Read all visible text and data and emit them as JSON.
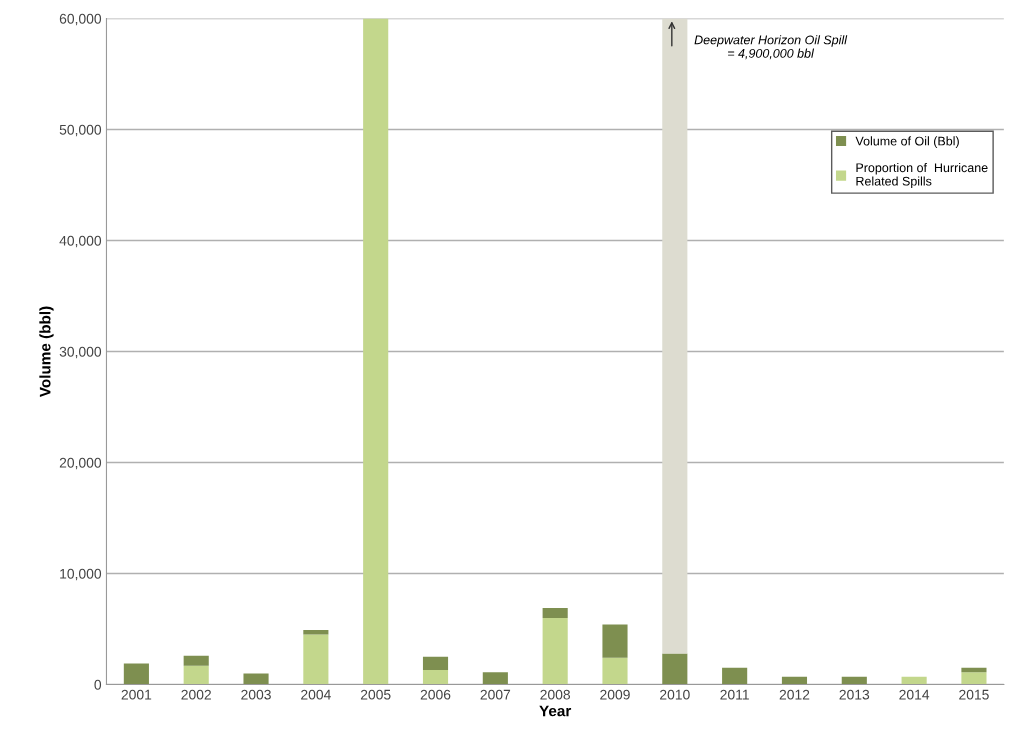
{
  "chart_data": {
    "type": "bar",
    "stacked": true,
    "xlabel": "Year",
    "ylabel": "Volume (bbl)",
    "categories": [
      "2001",
      "2002",
      "2003",
      "2004",
      "2005",
      "2006",
      "2007",
      "2008",
      "2009",
      "2010",
      "2011",
      "2012",
      "2013",
      "2014",
      "2015"
    ],
    "series": [
      {
        "name": "Proportion of  Hurricane\nRelated Spills",
        "color": "#c3d78c",
        "values": [
          0,
          1700,
          0,
          4500,
          60000,
          1300,
          0,
          6000,
          2400,
          0,
          0,
          0,
          0,
          700,
          1100
        ]
      },
      {
        "name": "Volume of Oil (Bbl)",
        "color": "#7e8f50",
        "values": [
          1900,
          900,
          1000,
          400,
          0,
          1200,
          1100,
          900,
          3000,
          2800,
          1500,
          700,
          700,
          0,
          400
        ]
      },
      {
        "color": "#dddcd0",
        "values": [
          null,
          null,
          null,
          null,
          null,
          null,
          null,
          null,
          null,
          57200,
          null,
          null,
          null,
          null,
          null
        ]
      }
    ],
    "ylim": [
      0,
      60000
    ],
    "yticks": [
      {
        "value": 0,
        "label": "0"
      },
      {
        "value": 10000,
        "label": "10,000"
      },
      {
        "value": 20000,
        "label": "20,000"
      },
      {
        "value": 30000,
        "label": "30,000"
      },
      {
        "value": 40000,
        "label": "40,000"
      },
      {
        "value": 50000,
        "label": "50,000"
      },
      {
        "value": 60000,
        "label": "60,000"
      }
    ],
    "grid": "y",
    "legend": "top right",
    "annotations": [
      {
        "text": "Deepwater Horizon Oil Spill\n= 4,900,000 bbl",
        "x": "2010",
        "y": 60000
      }
    ]
  }
}
